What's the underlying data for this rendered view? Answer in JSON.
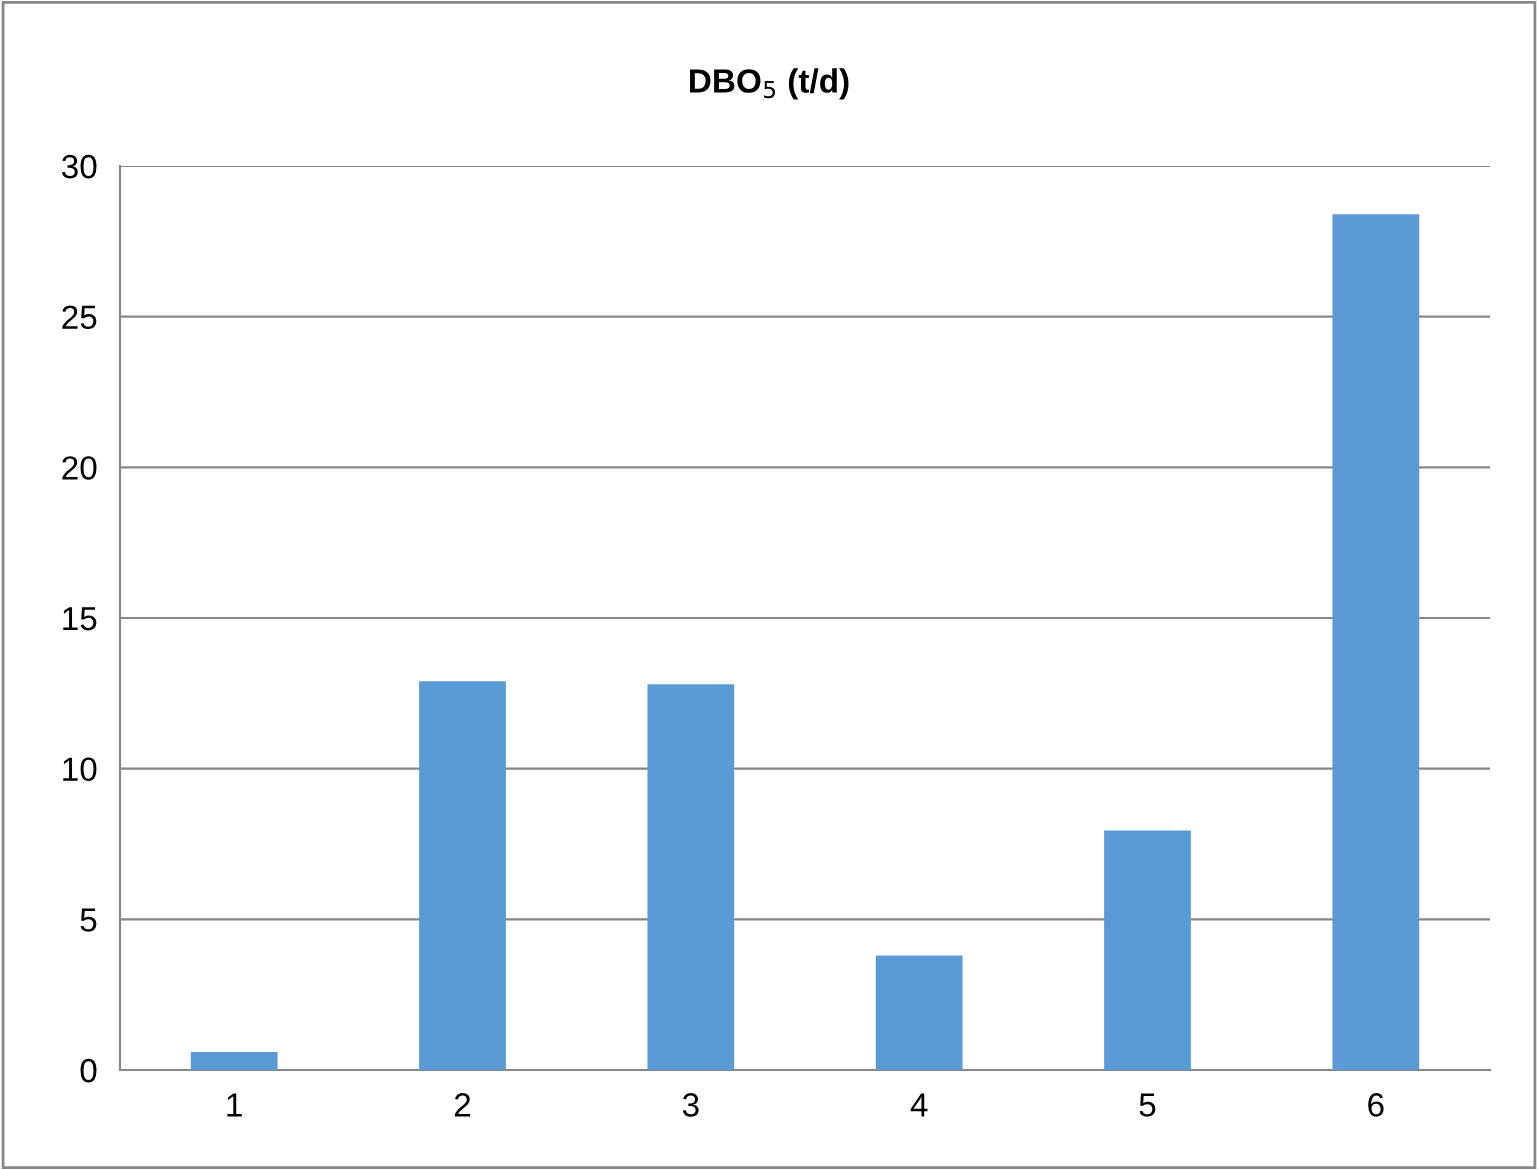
{
  "chart_data": {
    "type": "bar",
    "title": "DBO$_{5}$ (t/d)",
    "categories": [
      "1",
      "2",
      "3",
      "4",
      "5",
      "6"
    ],
    "values": [
      0.6,
      12.9,
      12.8,
      3.8,
      7.95,
      28.4
    ],
    "color": "#5b9bd5",
    "ylim": [
      0,
      30
    ],
    "yticks": [
      0,
      5,
      10,
      15,
      20,
      25,
      30
    ],
    "grid": "y"
  }
}
